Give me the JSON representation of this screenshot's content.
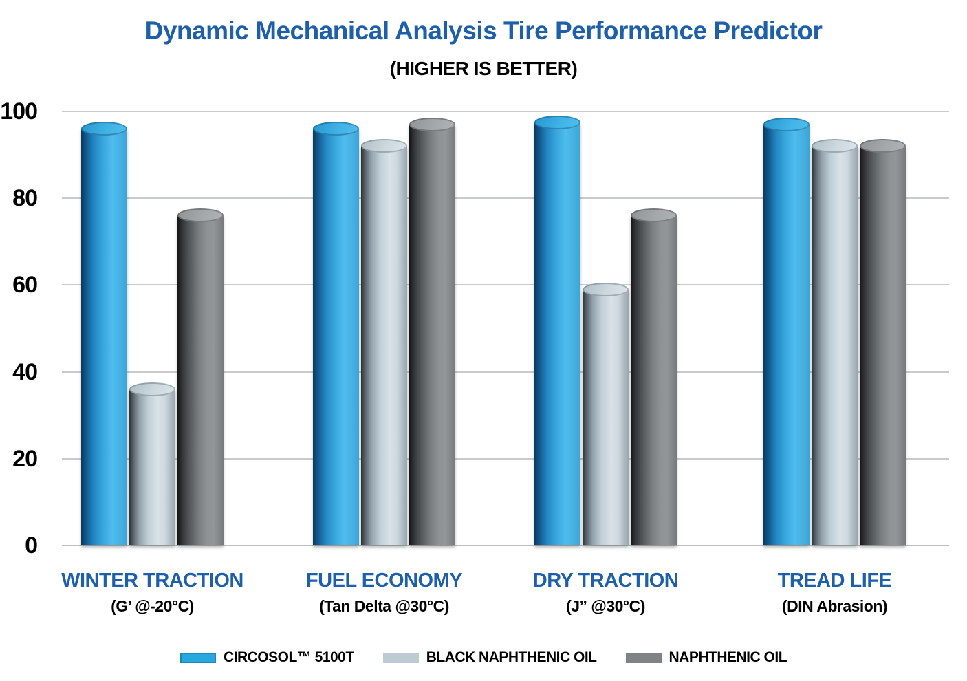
{
  "title": "Dynamic Mechanical Analysis Tire Performance Predictor",
  "subtitle": "(HIGHER IS BETTER)",
  "colors": {
    "title_blue": "#1d5fa8",
    "category_label_blue": "#1d5fa8",
    "gridline_gray": "#c9cacc",
    "circosol_blue": "#29a8e0",
    "black_naphthenic_gray": "#bccbd3",
    "naphthenic_gray": "#808285"
  },
  "chart_data": {
    "type": "bar",
    "style": "3d-cylinder",
    "title": "Dynamic Mechanical Analysis Tire Performance Predictor",
    "subtitle": "(HIGHER IS BETTER)",
    "categories": [
      {
        "label": "WINTER TRACTION",
        "sublabel": "(G’ @-20°C)"
      },
      {
        "label": "FUEL ECONOMY",
        "sublabel": "(Tan Delta @30°C)"
      },
      {
        "label": "DRY TRACTION",
        "sublabel": "(J” @30°C)"
      },
      {
        "label": "TREAD LIFE",
        "sublabel": "(DIN Abrasion)"
      }
    ],
    "series": [
      {
        "name": "CIRCOSOL™ 5100T",
        "color": "#29a8e0",
        "values": [
          96,
          96,
          97.5,
          97
        ]
      },
      {
        "name": "BLACK NAPHTHENIC OIL",
        "color": "#bccbd3",
        "values": [
          36,
          92,
          59,
          92
        ]
      },
      {
        "name": "NAPHTHENIC OIL",
        "color": "#808285",
        "values": [
          76,
          97,
          76,
          92
        ]
      }
    ],
    "ylim": [
      0,
      100
    ],
    "yticks": [
      0,
      20,
      40,
      60,
      80,
      100
    ],
    "grid": true,
    "legend_position": "bottom"
  }
}
